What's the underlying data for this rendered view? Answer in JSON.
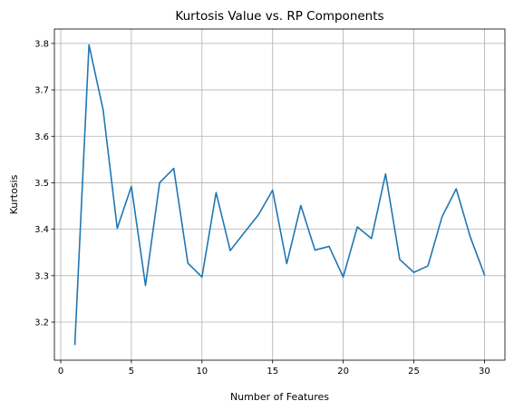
{
  "chart_data": {
    "type": "line",
    "title": "Kurtosis Value vs. RP Components",
    "xlabel": "Number of Features",
    "ylabel": "Kurtosis",
    "xlim": [
      -0.45,
      31.45
    ],
    "ylim": [
      3.118,
      3.831
    ],
    "x_ticks": [
      0,
      5,
      10,
      15,
      20,
      25,
      30
    ],
    "x_tick_labels": [
      "0",
      "5",
      "10",
      "15",
      "20",
      "25",
      "30"
    ],
    "y_ticks": [
      3.2,
      3.3,
      3.4,
      3.5,
      3.6,
      3.7,
      3.8
    ],
    "y_tick_labels": [
      "3.2",
      "3.3",
      "3.4",
      "3.5",
      "3.6",
      "3.7",
      "3.8"
    ],
    "grid": true,
    "line_color": "#1f77b4",
    "series": [
      {
        "x": [
          1,
          2,
          3,
          4,
          5,
          6,
          7,
          8,
          9,
          10,
          11,
          12,
          13,
          14,
          15,
          16,
          17,
          18,
          19,
          20,
          21,
          22,
          23,
          24,
          25,
          26,
          27,
          28,
          29,
          30
        ],
        "values": [
          3.152,
          3.797,
          3.657,
          3.402,
          3.492,
          3.279,
          3.5,
          3.531,
          3.327,
          3.297,
          3.479,
          3.354,
          3.393,
          3.431,
          3.484,
          3.326,
          3.451,
          3.355,
          3.363,
          3.297,
          3.405,
          3.38,
          3.519,
          3.335,
          3.307,
          3.321,
          3.427,
          3.487,
          3.383,
          3.302
        ]
      }
    ]
  }
}
